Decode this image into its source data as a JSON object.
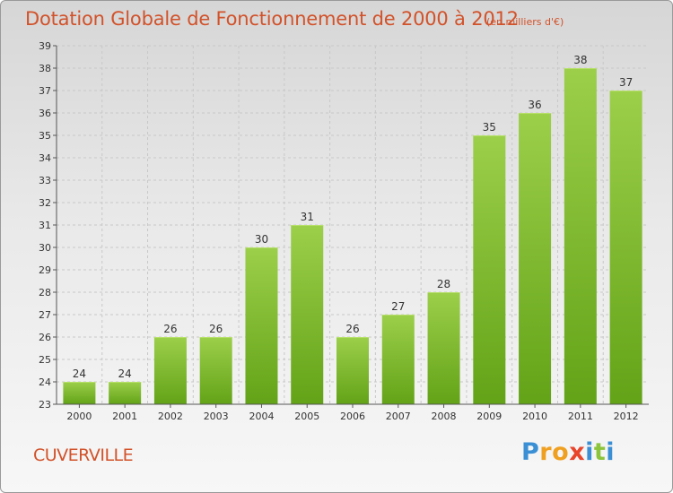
{
  "title": "Dotation Globale de Fonctionnement de 2000 à 2012",
  "subtitle": "(en milliers d'€)",
  "commune": "CUVERVILLE",
  "logo": {
    "text": "Proxiti",
    "letter_colors": [
      "#3b8fd4",
      "#f0a020",
      "#f0a020",
      "#e8452b",
      "#3b8fd4",
      "#8cc43c",
      "#3b8fd4"
    ]
  },
  "colors": {
    "title": "#d2522a",
    "bar_top": "#9ccf4a",
    "bar_bottom": "#63a318",
    "grid": "#c8c8c8",
    "axis": "#555555",
    "text": "#333333"
  },
  "chart_data": {
    "type": "bar",
    "categories": [
      "2000",
      "2001",
      "2002",
      "2003",
      "2004",
      "2005",
      "2006",
      "2007",
      "2008",
      "2009",
      "2010",
      "2011",
      "2012"
    ],
    "values": [
      24,
      24,
      26,
      26,
      30,
      31,
      26,
      27,
      28,
      35,
      36,
      38,
      37
    ],
    "ylim": [
      23,
      39
    ],
    "yticks": [
      23,
      24,
      25,
      26,
      27,
      28,
      29,
      30,
      31,
      32,
      33,
      34,
      35,
      36,
      37,
      38,
      39
    ],
    "grid": true,
    "data_labels": true
  }
}
